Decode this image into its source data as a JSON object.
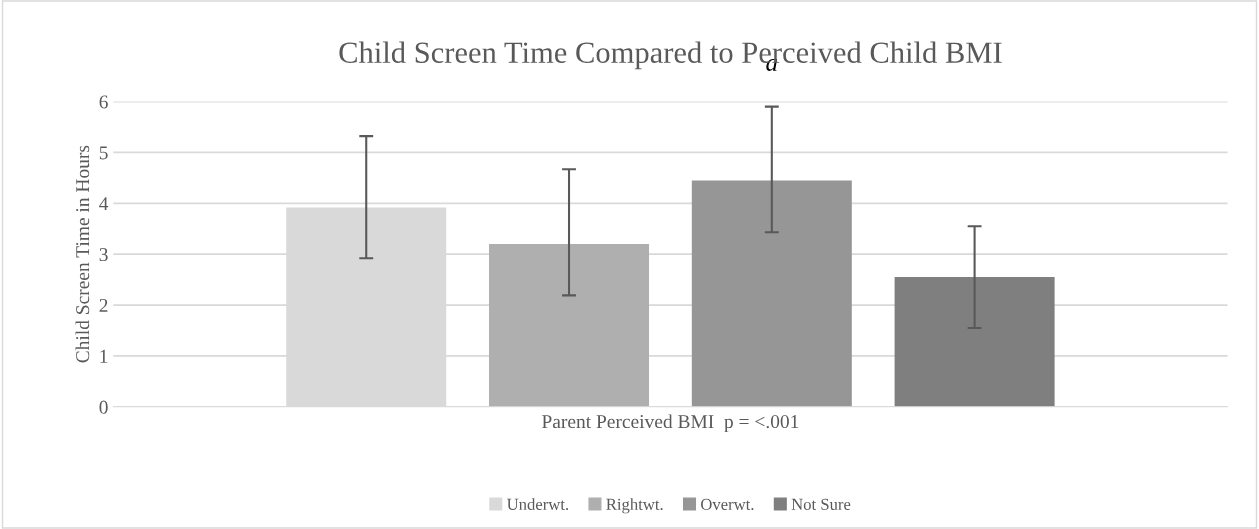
{
  "chart_data": {
    "type": "bar",
    "title": "Child Screen Time Compared to Perceived Child BMI",
    "xlabel": "Parent Perceived BMI  p = <.001",
    "ylabel": "Child Screen Time in Hours",
    "categories": [
      null
    ],
    "series": [
      {
        "name": "Underwt.",
        "color": "#d9d9d9",
        "values": [
          3.92
        ],
        "errors": [
          [
            2.92,
            5.32
          ]
        ]
      },
      {
        "name": "Rightwt.",
        "color": "#afafaf",
        "values": [
          3.2
        ],
        "errors": [
          [
            2.19,
            4.67
          ]
        ]
      },
      {
        "name": "Overwt.",
        "color": "#969696",
        "values": [
          4.45
        ],
        "errors": [
          [
            3.43,
            5.9
          ]
        ]
      },
      {
        "name": "Not Sure",
        "color": "#7f7f7f",
        "values": [
          2.55
        ],
        "errors": [
          [
            1.55,
            3.55
          ]
        ]
      }
    ],
    "annotations": [
      "a"
    ],
    "ylim": [
      0,
      6
    ],
    "yticks": [
      0,
      1,
      2,
      3,
      4,
      5,
      6
    ],
    "grid": "y",
    "legend": "bottom"
  }
}
